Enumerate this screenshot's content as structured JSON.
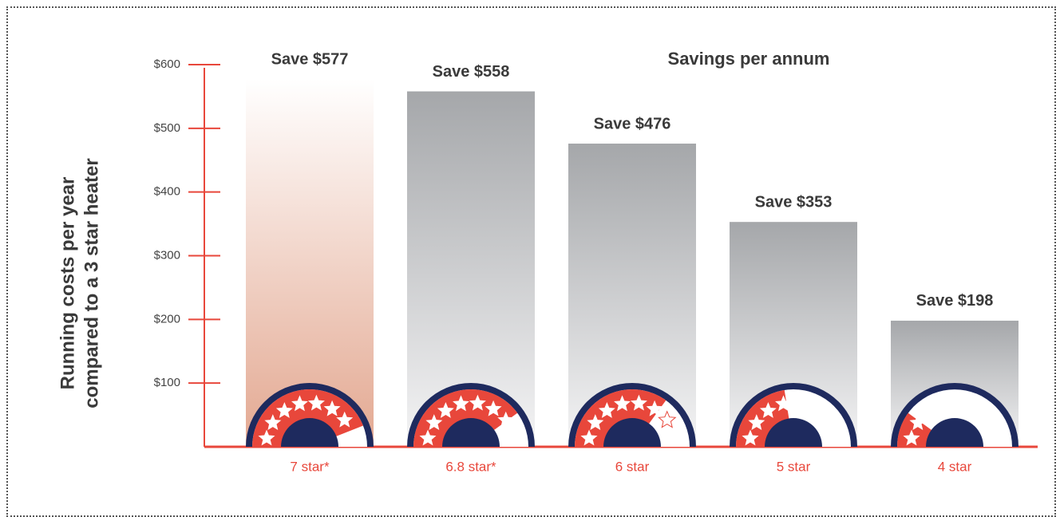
{
  "chart_data": {
    "type": "bar",
    "title": "Savings per annum",
    "y_label": [
      "Running costs per year",
      "compared to a 3 star heater"
    ],
    "categories": [
      "7 star*",
      "6.8 star*",
      "6 star",
      "5 star",
      "4 star"
    ],
    "values": [
      577,
      558,
      476,
      353,
      198
    ],
    "value_labels": [
      "Save $577",
      "Save $558",
      "Save $476",
      "Save $353",
      "Save $198"
    ],
    "colors": [
      "#e3a891",
      "#a5a7aa",
      "#a5a7aa",
      "#a5a7aa",
      "#a5a7aa"
    ],
    "ylim": [
      0,
      600
    ],
    "yticks": [
      {
        "value": 100,
        "label": "$100"
      },
      {
        "value": 200,
        "label": "$200"
      },
      {
        "value": 300,
        "label": "$300"
      },
      {
        "value": 400,
        "label": "$400"
      },
      {
        "value": 500,
        "label": "$500"
      },
      {
        "value": 600,
        "label": "$600"
      }
    ],
    "axis_color": "#e8473b"
  }
}
